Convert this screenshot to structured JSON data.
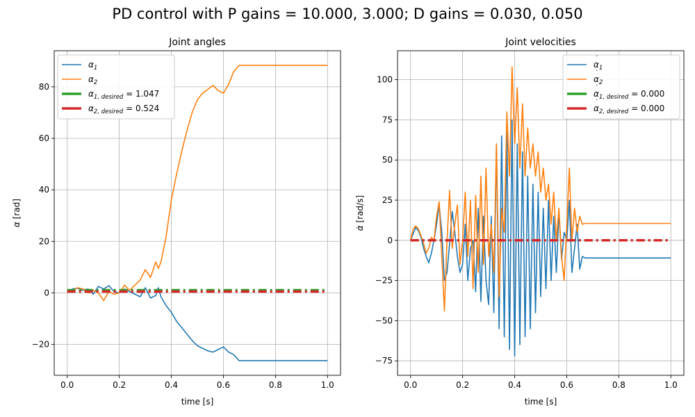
{
  "figure": {
    "suptitle": "PD control with P gains = 10.000, 3.000; D gains = 0.030, 0.050"
  },
  "chart_data": [
    {
      "type": "line",
      "title": "Joint angles",
      "xlabel": "time [s]",
      "ylabel_symbol": "α",
      "ylabel_unit": "[rad]",
      "xlim": [
        -0.05,
        1.05
      ],
      "ylim": [
        -32,
        94
      ],
      "xticks": [
        0.0,
        0.2,
        0.4,
        0.6,
        0.8,
        1.0
      ],
      "xtick_labels": [
        "0.0",
        "0.2",
        "0.4",
        "0.6",
        "0.8",
        "1.0"
      ],
      "yticks": [
        -20,
        0,
        20,
        40,
        60,
        80
      ],
      "ytick_labels": [
        "−20",
        "0",
        "20",
        "40",
        "60",
        "80"
      ],
      "grid": true,
      "legend_position": "top-left",
      "series": [
        {
          "name": "α_1",
          "legend_base": "α",
          "legend_sub": "1",
          "legend_dot": false,
          "legend_value": "",
          "color": "#1f77b4",
          "style": "solid",
          "x": [
            0.0,
            0.02,
            0.04,
            0.06,
            0.08,
            0.1,
            0.12,
            0.14,
            0.16,
            0.18,
            0.2,
            0.22,
            0.24,
            0.26,
            0.28,
            0.3,
            0.32,
            0.34,
            0.35,
            0.36,
            0.38,
            0.4,
            0.42,
            0.44,
            0.46,
            0.48,
            0.5,
            0.52,
            0.54,
            0.56,
            0.58,
            0.6,
            0.62,
            0.64,
            0.66,
            0.67,
            0.7,
            0.8,
            0.9,
            1.0
          ],
          "y": [
            0.5,
            1.5,
            1.8,
            1.0,
            1.5,
            -0.5,
            2.5,
            1.5,
            2.8,
            0.5,
            0.0,
            1.5,
            0.5,
            -0.5,
            -1.5,
            2.0,
            -2.0,
            -1.0,
            2.0,
            -1.5,
            -5.0,
            -7.5,
            -11,
            -13.5,
            -16,
            -18.5,
            -20.5,
            -21.5,
            -22.5,
            -23,
            -22,
            -21,
            -23,
            -24,
            -26.3,
            -26.3,
            -26.3,
            -26.3,
            -26.3,
            -26.3
          ]
        },
        {
          "name": "α_2",
          "legend_base": "α",
          "legend_sub": "2",
          "legend_dot": false,
          "legend_value": "",
          "color": "#ff7f0e",
          "style": "solid",
          "x": [
            0.0,
            0.02,
            0.04,
            0.06,
            0.08,
            0.1,
            0.12,
            0.14,
            0.16,
            0.18,
            0.2,
            0.22,
            0.24,
            0.26,
            0.28,
            0.3,
            0.32,
            0.34,
            0.35,
            0.36,
            0.38,
            0.4,
            0.42,
            0.44,
            0.46,
            0.48,
            0.5,
            0.52,
            0.54,
            0.56,
            0.58,
            0.6,
            0.62,
            0.64,
            0.66,
            0.67,
            0.7,
            0.8,
            0.9,
            1.0
          ],
          "y": [
            0.0,
            1.0,
            2.0,
            1.5,
            0.0,
            1.0,
            0.0,
            -3.0,
            0.5,
            -0.5,
            0.0,
            3.0,
            1.0,
            3.0,
            5.0,
            9.0,
            6.0,
            12.0,
            9.5,
            12.0,
            22.0,
            36.0,
            46.0,
            55.0,
            63.0,
            70.0,
            75.0,
            77.5,
            79.0,
            80.5,
            78.5,
            77.5,
            81.0,
            86.0,
            88.3,
            88.3,
            88.3,
            88.3,
            88.3,
            88.3
          ]
        },
        {
          "name": "α_1,desired",
          "legend_base": "α",
          "legend_sub": "1, desired",
          "legend_dot": false,
          "legend_value": "= 1.047",
          "color": "#2ca02c",
          "style": "dashdot",
          "x": [
            0.0,
            1.0
          ],
          "y": [
            1.047,
            1.047
          ]
        },
        {
          "name": "α_2,desired",
          "legend_base": "α",
          "legend_sub": "2, desired",
          "legend_dot": false,
          "legend_value": "= 0.524",
          "color": "#d62728",
          "style": "dashdot",
          "x": [
            0.0,
            1.0
          ],
          "y": [
            0.524,
            0.524
          ]
        }
      ]
    },
    {
      "type": "line",
      "title": "Joint velocities",
      "xlabel": "time [s]",
      "ylabel_symbol": "α̇",
      "ylabel_unit_num": "rad",
      "ylabel_unit_den": "s",
      "xlim": [
        -0.05,
        1.05
      ],
      "ylim": [
        -84,
        118
      ],
      "xticks": [
        0.0,
        0.2,
        0.4,
        0.6,
        0.8,
        1.0
      ],
      "xtick_labels": [
        "0.0",
        "0.2",
        "0.4",
        "0.6",
        "0.8",
        "1.0"
      ],
      "yticks": [
        -75,
        -50,
        -25,
        0,
        25,
        50,
        75,
        100
      ],
      "ytick_labels": [
        "−75",
        "−50",
        "−25",
        "0",
        "25",
        "50",
        "75",
        "100"
      ],
      "grid": true,
      "legend_position": "top-right",
      "series": [
        {
          "name": "α̇_1",
          "legend_base": "α",
          "legend_sub": "1",
          "legend_dot": true,
          "legend_value": "",
          "color": "#1f77b4",
          "style": "solid",
          "x": [
            0.0,
            0.01,
            0.02,
            0.03,
            0.04,
            0.05,
            0.06,
            0.07,
            0.08,
            0.09,
            0.1,
            0.11,
            0.12,
            0.13,
            0.14,
            0.15,
            0.16,
            0.17,
            0.18,
            0.19,
            0.2,
            0.21,
            0.22,
            0.23,
            0.24,
            0.25,
            0.26,
            0.27,
            0.28,
            0.29,
            0.3,
            0.31,
            0.32,
            0.33,
            0.34,
            0.35,
            0.36,
            0.37,
            0.38,
            0.39,
            0.4,
            0.41,
            0.42,
            0.43,
            0.44,
            0.45,
            0.46,
            0.47,
            0.48,
            0.49,
            0.5,
            0.51,
            0.52,
            0.53,
            0.54,
            0.55,
            0.56,
            0.57,
            0.58,
            0.59,
            0.6,
            0.61,
            0.62,
            0.63,
            0.64,
            0.65,
            0.66,
            0.67,
            0.7,
            0.8,
            0.9,
            1.0
          ],
          "y": [
            0,
            4,
            8,
            6,
            2,
            -5,
            -10,
            -14,
            -8,
            0,
            10,
            22,
            5,
            -25,
            -20,
            -2,
            18,
            5,
            -10,
            -20,
            -15,
            10,
            -25,
            -5,
            0,
            -32,
            20,
            -38,
            15,
            -25,
            -40,
            15,
            -45,
            60,
            -55,
            65,
            -60,
            70,
            -68,
            75,
            -72,
            60,
            -65,
            55,
            -60,
            40,
            -55,
            35,
            -45,
            30,
            -35,
            20,
            -30,
            25,
            -25,
            15,
            -20,
            18,
            -12,
            5,
            0,
            25,
            -20,
            -5,
            10,
            -18,
            -10,
            -11,
            -11,
            -11,
            -11,
            -11
          ]
        },
        {
          "name": "α̇_2",
          "legend_base": "α",
          "legend_sub": "2",
          "legend_dot": true,
          "legend_value": "",
          "color": "#ff7f0e",
          "style": "solid",
          "x": [
            0.0,
            0.01,
            0.02,
            0.03,
            0.04,
            0.05,
            0.06,
            0.07,
            0.08,
            0.09,
            0.1,
            0.11,
            0.12,
            0.13,
            0.14,
            0.15,
            0.16,
            0.17,
            0.18,
            0.19,
            0.2,
            0.21,
            0.22,
            0.23,
            0.24,
            0.25,
            0.26,
            0.27,
            0.28,
            0.29,
            0.3,
            0.31,
            0.32,
            0.33,
            0.34,
            0.35,
            0.36,
            0.37,
            0.38,
            0.39,
            0.4,
            0.41,
            0.42,
            0.43,
            0.44,
            0.45,
            0.46,
            0.47,
            0.48,
            0.49,
            0.5,
            0.51,
            0.52,
            0.53,
            0.54,
            0.55,
            0.56,
            0.57,
            0.58,
            0.59,
            0.6,
            0.61,
            0.62,
            0.63,
            0.64,
            0.65,
            0.66,
            0.67,
            0.7,
            0.8,
            0.9,
            1.0
          ],
          "y": [
            0,
            7,
            9,
            7,
            3,
            -2,
            -8,
            -5,
            2,
            0,
            15,
            24,
            -10,
            -44,
            0,
            31,
            -5,
            10,
            22,
            -15,
            0,
            30,
            -10,
            25,
            -30,
            28,
            -20,
            40,
            -15,
            45,
            -10,
            10,
            -20,
            60,
            -35,
            20,
            5,
            80,
            40,
            108,
            60,
            95,
            45,
            85,
            40,
            70,
            45,
            60,
            40,
            55,
            30,
            45,
            25,
            35,
            10,
            30,
            0,
            20,
            -10,
            -25,
            10,
            45,
            0,
            20,
            5,
            15,
            10,
            10.5,
            10.5,
            10.5,
            10.5,
            10.5
          ]
        },
        {
          "name": "α̇_1,desired",
          "legend_base": "α",
          "legend_sub": "1, desired",
          "legend_dot": true,
          "legend_value": "= 0.000",
          "color": "#2ca02c",
          "style": "dashdot",
          "x": [
            0.0,
            1.0
          ],
          "y": [
            0.0,
            0.0
          ]
        },
        {
          "name": "α̇_2,desired",
          "legend_base": "α",
          "legend_sub": "2, desired",
          "legend_dot": true,
          "legend_value": "= 0.000",
          "color": "#d62728",
          "style": "dashdot",
          "x": [
            0.0,
            1.0
          ],
          "y": [
            0.0,
            0.0
          ]
        }
      ]
    }
  ]
}
